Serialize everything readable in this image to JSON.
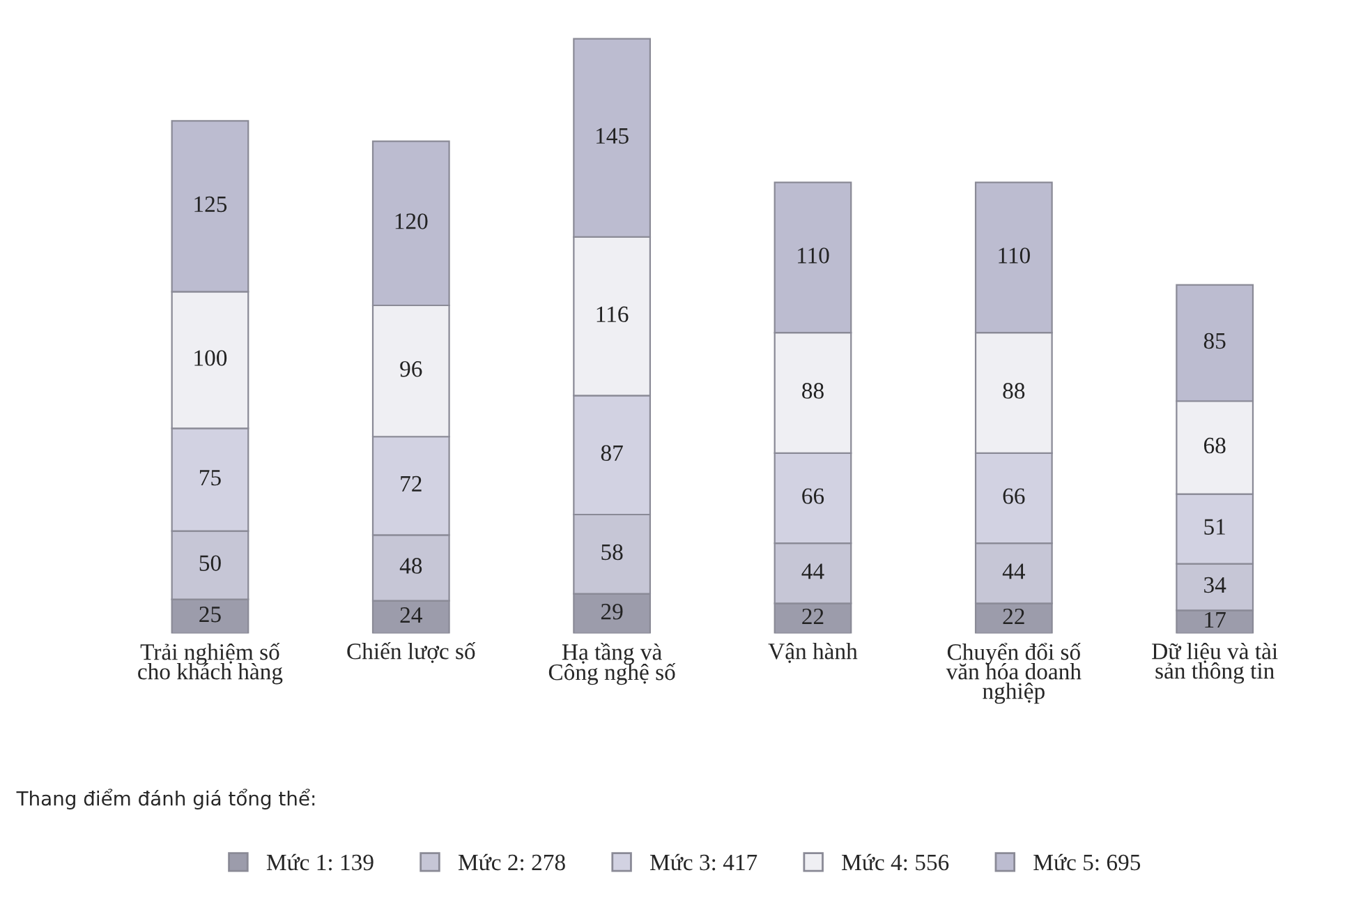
{
  "chart_data": {
    "type": "bar",
    "stacked": true,
    "data_labels": true,
    "legend": "bottom",
    "categories": [
      "Trải nghiệm số cho khách hàng",
      "Chiến lược số",
      "Hạ tầng và Công nghệ số",
      "Vận hành",
      "Chuyển đổi số văn hóa doanh nghiệp",
      "Dữ liệu và tài sản thông tin"
    ],
    "series": [
      {
        "name": "Mức 1: 139",
        "color": "#9c9cab",
        "values": [
          25,
          24,
          29,
          22,
          22,
          17
        ]
      },
      {
        "name": "Mức 2: 278",
        "color": "#c6c6d6",
        "values": [
          50,
          48,
          58,
          44,
          44,
          34
        ]
      },
      {
        "name": "Mức 3: 417",
        "color": "#d2d2e2",
        "values": [
          75,
          72,
          87,
          66,
          66,
          51
        ]
      },
      {
        "name": "Mức 4: 556",
        "color": "#efeff3",
        "values": [
          100,
          96,
          116,
          88,
          88,
          68
        ]
      },
      {
        "name": "Mức 5: 695",
        "color": "#bcbcd0",
        "values": [
          125,
          120,
          145,
          110,
          110,
          85
        ]
      }
    ],
    "annotations": [
      "Thang điểm đánh giá tổng thể:"
    ]
  }
}
